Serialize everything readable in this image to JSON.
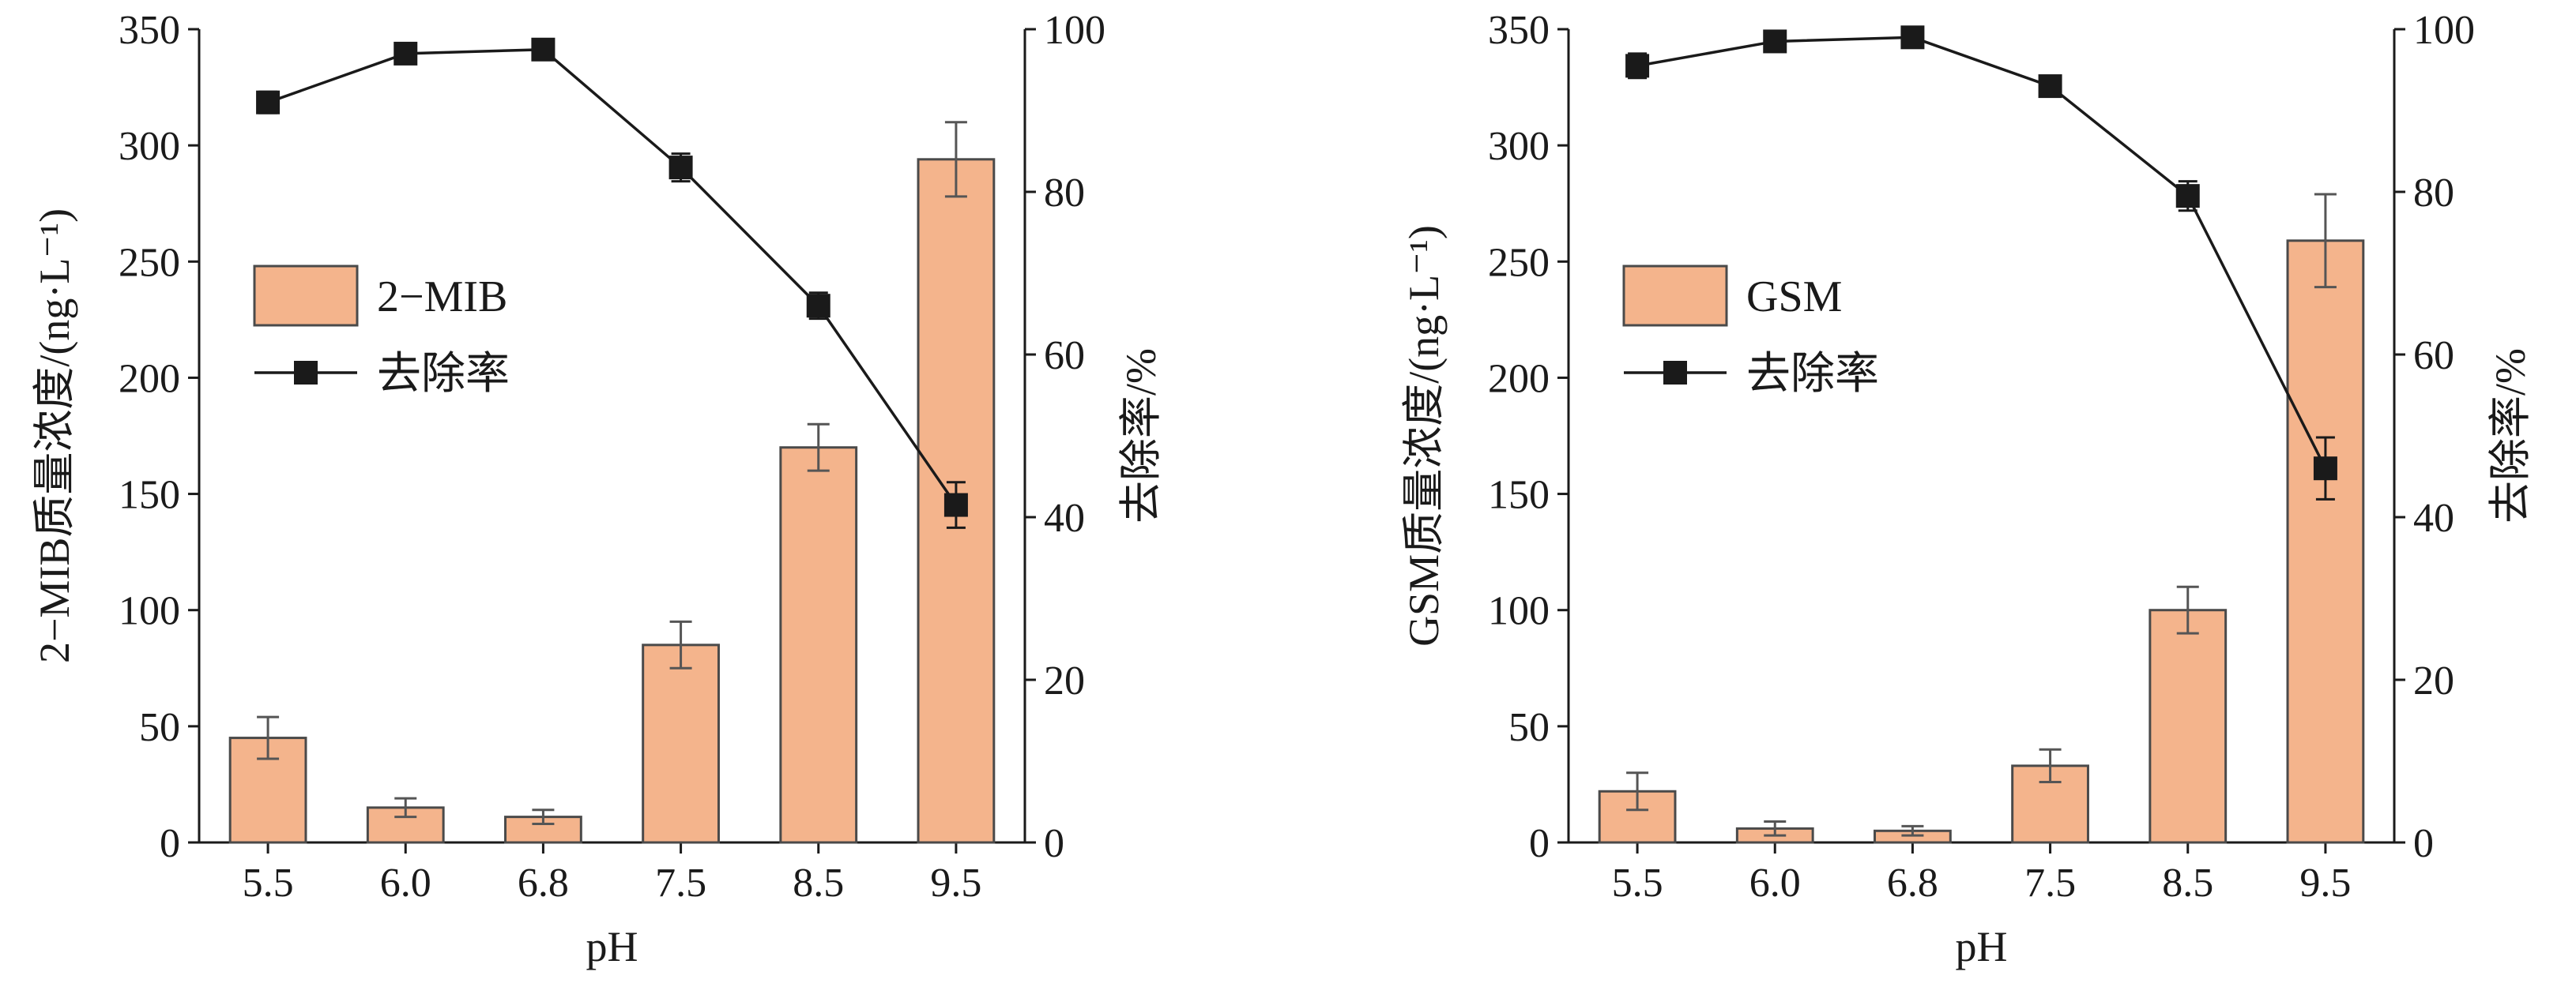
{
  "colors": {
    "bar_fill": "#f4b48c",
    "bar_stroke": "#4a4a4a",
    "line": "#1a1a1a",
    "marker": "#1a1a1a",
    "error_bar": "#555555",
    "axis": "#1a1a1a"
  },
  "chart_data": [
    {
      "type": "bar+line",
      "categories": [
        "5.5",
        "6.0",
        "6.8",
        "7.5",
        "8.5",
        "9.5"
      ],
      "xlabel": "pH",
      "ylabel_left": "2−MIB质量浓度/(ng·L⁻¹)",
      "ylabel_right": "去除率/%",
      "ylim_left": [
        0,
        350
      ],
      "ylim_right": [
        0,
        100
      ],
      "yticks_left": [
        "0",
        "50",
        "100",
        "150",
        "200",
        "250",
        "300",
        "350"
      ],
      "yticks_right": [
        "0",
        "20",
        "40",
        "60",
        "80",
        "100"
      ],
      "legend": {
        "position": "upper-left",
        "bar_label": "2−MIB",
        "line_label": "去除率"
      },
      "bar_series": {
        "name": "2−MIB",
        "values": [
          45,
          15,
          11,
          85,
          170,
          294
        ],
        "errors": [
          9,
          4,
          3,
          10,
          10,
          16
        ]
      },
      "line_series": {
        "name": "去除率",
        "values": [
          91,
          97,
          97.5,
          83,
          66,
          41.5
        ],
        "errors": [
          1.3,
          0.8,
          0.8,
          1.7,
          1.6,
          2.8
        ]
      }
    },
    {
      "type": "bar+line",
      "categories": [
        "5.5",
        "6.0",
        "6.8",
        "7.5",
        "8.5",
        "9.5"
      ],
      "xlabel": "pH",
      "ylabel_left": "GSM质量浓度/(ng·L⁻¹)",
      "ylabel_right": "去除率/%",
      "ylim_left": [
        0,
        350
      ],
      "ylim_right": [
        0,
        100
      ],
      "yticks_left": [
        "0",
        "50",
        "100",
        "150",
        "200",
        "250",
        "300",
        "350"
      ],
      "yticks_right": [
        "0",
        "20",
        "40",
        "60",
        "80",
        "100"
      ],
      "legend": {
        "position": "upper-left",
        "bar_label": "GSM",
        "line_label": "去除率"
      },
      "bar_series": {
        "name": "GSM",
        "values": [
          22,
          6,
          5,
          33,
          100,
          259
        ],
        "errors": [
          8,
          3,
          2,
          7,
          10,
          20
        ]
      },
      "line_series": {
        "name": "去除率",
        "values": [
          95.5,
          98.5,
          99,
          93,
          79.5,
          46
        ],
        "errors": [
          1.5,
          0.8,
          0.8,
          1.2,
          1.8,
          3.8
        ]
      }
    }
  ]
}
